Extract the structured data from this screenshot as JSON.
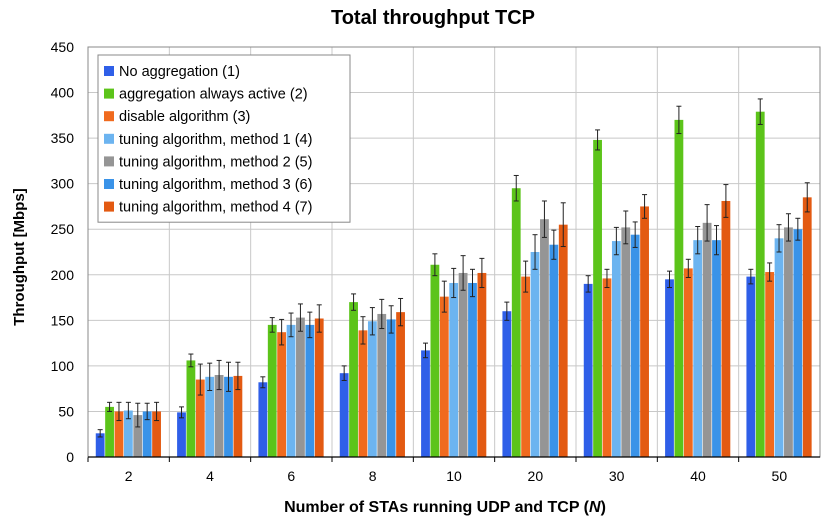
{
  "chart_data": {
    "type": "bar",
    "title": "Total throughput TCP",
    "xlabel_prefix": "Number of STAs running UDP and TCP (",
    "xlabel_var": "N",
    "xlabel_suffix": ")",
    "ylabel": "Throughput [Mbps]",
    "ylim": [
      0,
      450
    ],
    "yticks": [
      0,
      50,
      100,
      150,
      200,
      250,
      300,
      350,
      400,
      450
    ],
    "grid": true,
    "legend_position": "top-left",
    "categories": [
      "2",
      "4",
      "6",
      "8",
      "10",
      "20",
      "30",
      "40",
      "50"
    ],
    "series": [
      {
        "name": "No aggregation (1)",
        "color": "#2f5fe8",
        "values": [
          26,
          49,
          82,
          92,
          117,
          160,
          190,
          195,
          198
        ],
        "errors": [
          4,
          6,
          6,
          8,
          8,
          10,
          9,
          9,
          8
        ]
      },
      {
        "name": "aggregation always active (2)",
        "color": "#5cc41a",
        "values": [
          55,
          106,
          145,
          170,
          211,
          295,
          348,
          370,
          379
        ],
        "errors": [
          5,
          7,
          8,
          9,
          12,
          14,
          11,
          15,
          14
        ]
      },
      {
        "name": "disable algorithm (3)",
        "color": "#f06a1e",
        "values": [
          50,
          85,
          137,
          139,
          176,
          198,
          196,
          207,
          203
        ],
        "errors": [
          10,
          17,
          14,
          15,
          17,
          17,
          10,
          10,
          10
        ]
      },
      {
        "name": "tuning algorithm, method 1 (4)",
        "color": "#6cb4f0",
        "values": [
          51,
          88,
          145,
          149,
          191,
          225,
          237,
          238,
          240
        ],
        "errors": [
          9,
          15,
          13,
          15,
          16,
          19,
          15,
          15,
          15
        ]
      },
      {
        "name": "tuning algorithm, method 2 (5)",
        "color": "#959595",
        "values": [
          46,
          90,
          153,
          157,
          202,
          261,
          252,
          257,
          252
        ],
        "errors": [
          13,
          16,
          15,
          16,
          19,
          20,
          18,
          20,
          15
        ]
      },
      {
        "name": "tuning algorithm, method 3 (6)",
        "color": "#3a93e8",
        "values": [
          50,
          88,
          145,
          151,
          191,
          233,
          244,
          238,
          250
        ],
        "errors": [
          9,
          16,
          14,
          15,
          15,
          16,
          14,
          16,
          12
        ]
      },
      {
        "name": "tuning algorithm, method 4 (7)",
        "color": "#e35a12",
        "values": [
          50,
          89,
          152,
          159,
          202,
          255,
          275,
          281,
          285
        ],
        "errors": [
          10,
          15,
          15,
          15,
          16,
          24,
          13,
          18,
          16
        ]
      }
    ]
  }
}
